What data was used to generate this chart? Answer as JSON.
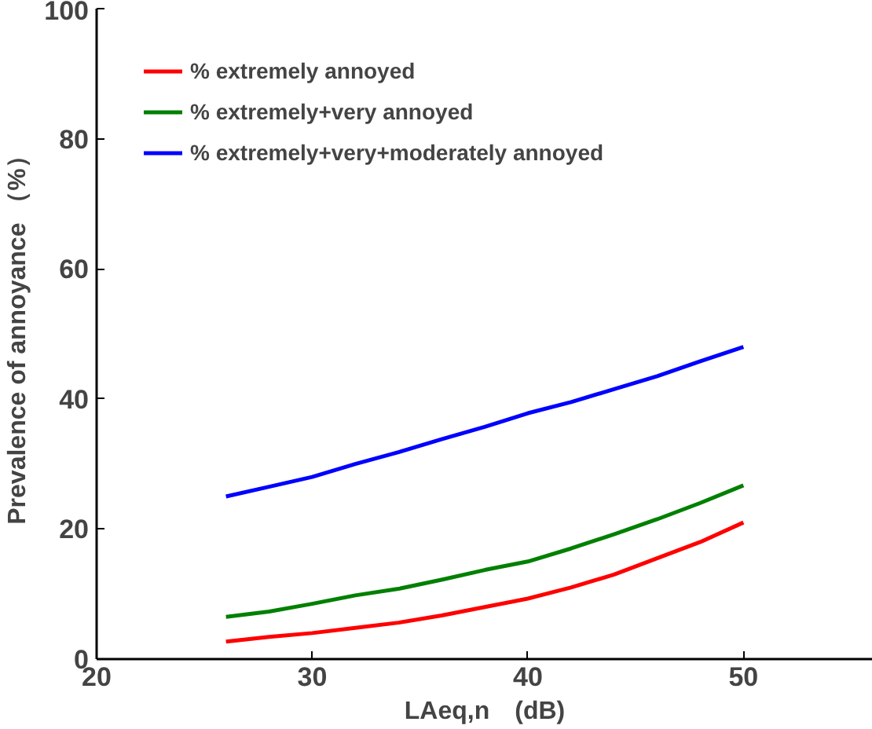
{
  "chart_data": {
    "type": "line",
    "xlabel": "LAeq,n　(dB)",
    "ylabel": "Prevalence of annoyance （%）",
    "x": [
      26,
      28,
      30,
      32,
      34,
      36,
      38,
      40,
      42,
      44,
      46,
      48,
      50
    ],
    "series": [
      {
        "name": "% extremely annoyed",
        "color": "#ff0000",
        "values": [
          2.7,
          3.4,
          4.0,
          4.8,
          5.6,
          6.7,
          8.0,
          9.3,
          11.0,
          13.0,
          15.5,
          18.0,
          21.0
        ]
      },
      {
        "name": "% extremely+very annoyed",
        "color": "#008000",
        "values": [
          6.5,
          7.3,
          8.5,
          9.8,
          10.8,
          12.2,
          13.7,
          15.0,
          17.0,
          19.2,
          21.5,
          24.0,
          26.7
        ]
      },
      {
        "name": "% extremely+very+moderately annoyed",
        "color": "#0000ff",
        "values": [
          25.0,
          26.5,
          28.0,
          30.0,
          31.8,
          33.8,
          35.7,
          37.8,
          39.5,
          41.5,
          43.5,
          45.8,
          48.0
        ]
      }
    ],
    "xlim": [
      20,
      56
    ],
    "ylim": [
      0,
      100
    ],
    "xticks": [
      20,
      30,
      40,
      50
    ],
    "yticks": [
      0,
      20,
      40,
      60,
      80,
      100
    ],
    "grid": false,
    "legend": "top left",
    "line_style": "solid",
    "marker": "none"
  }
}
